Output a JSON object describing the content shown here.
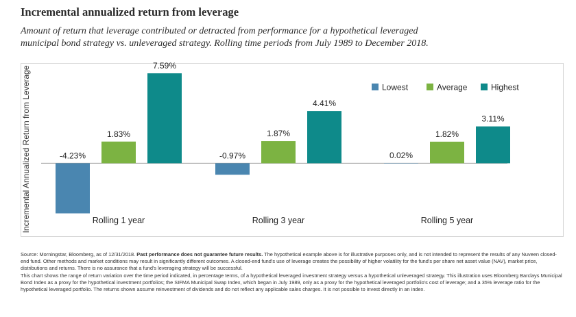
{
  "header": {
    "title": "Incremental annualized return from leverage",
    "subtitle_line1": "Amount of return that leverage contributed or detracted from performance for a  hypothetical leveraged",
    "subtitle_line2": "municipal bond strategy vs. unleveraged strategy. Rolling time periods from July 1989 to December 2018."
  },
  "chart_data": {
    "type": "bar",
    "title": "Incremental annualized return from leverage",
    "ylabel": "Incremental Annualized Return from Leverage",
    "xlabel": "",
    "categories": [
      "Rolling 1 year",
      "Rolling 3 year",
      "Rolling 5 year"
    ],
    "series": [
      {
        "name": "Lowest",
        "color": "#4a86b0",
        "values": [
          -4.23,
          -0.97,
          0.02
        ],
        "labels": [
          "-4.23%",
          "-0.97%",
          "0.02%"
        ]
      },
      {
        "name": "Average",
        "color": "#7cb342",
        "values": [
          1.83,
          1.87,
          1.82
        ],
        "labels": [
          "1.83%",
          "1.87%",
          "1.82%"
        ]
      },
      {
        "name": "Highest",
        "color": "#0e8a8a",
        "values": [
          7.59,
          4.41,
          3.11
        ],
        "labels": [
          "7.59%",
          "4.41%",
          "3.11%"
        ]
      }
    ],
    "ylim": [
      -4.6,
      8.0
    ],
    "grid": false,
    "legend_position": "top-right",
    "zero_line_color": "#999999"
  },
  "footnote": {
    "p1_lead": "Source: Morningstar, Bloomberg, as of 12/31/2018. ",
    "p1_bold": "Past performance does not guarantee future results.",
    "p1_rest": " The hypothetical example above is for illustrative purposes only, and is not intended to represent the results of any Nuveen closed-end fund. Other methods and market conditions may result in significantly different outcomes. A closed-end fund's use of leverage creates the possibility of higher volatility for the fund's per share net asset value (NAV), market price, distributions and returns. There is no assurance that a fund's leveraging strategy will be successful.",
    "p2": "This chart shows the range of return variation over the time period indicated, in percentage terms, of a hypothetical leveraged investment strategy versus a hypothetical unleveraged strategy. This illustration uses Bloomberg Barclays Municipal Bond Index as a proxy for the hypothetical investment portfolios; the SIFMA Municipal Swap Index, which began in July 1989, only as a proxy for the hypothetical leveraged portfolio's cost of leverage; and a 35% leverage ratio for the hypothetical leveraged portfolio. The returns shown assume reinvestment of dividends and do not reflect any applicable sales charges. It is not possible to invest directly in an index."
  }
}
